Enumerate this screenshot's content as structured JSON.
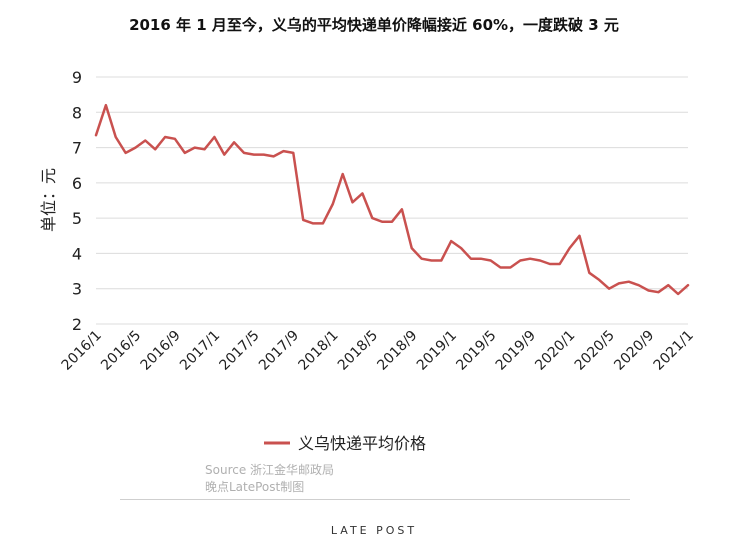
{
  "chart_data": {
    "type": "line",
    "title": "2016 年 1 月至今，义乌的平均快递单价降幅接近 60%，一度跌破 3 元",
    "ylabel": "单位：元",
    "xlabel": "",
    "ylim": [
      2,
      9
    ],
    "yticks": [
      "2",
      "3",
      "4",
      "5",
      "6",
      "7",
      "8",
      "9"
    ],
    "grid": true,
    "legend_position": "bottom",
    "x_tick_labels": [
      "2016/1",
      "2016/5",
      "2016/9",
      "2017/1",
      "2017/5",
      "2017/9",
      "2018/1",
      "2018/5",
      "2018/9",
      "2019/1",
      "2019/5",
      "2019/9",
      "2020/1",
      "2020/5",
      "2020/9",
      "2021/1"
    ],
    "x": [
      "2016/1",
      "2016/2",
      "2016/3",
      "2016/4",
      "2016/5",
      "2016/6",
      "2016/7",
      "2016/8",
      "2016/9",
      "2016/10",
      "2016/11",
      "2016/12",
      "2017/1",
      "2017/2",
      "2017/3",
      "2017/4",
      "2017/5",
      "2017/6",
      "2017/7",
      "2017/8",
      "2017/9",
      "2017/10",
      "2017/11",
      "2017/12",
      "2018/1",
      "2018/2",
      "2018/3",
      "2018/4",
      "2018/5",
      "2018/6",
      "2018/7",
      "2018/8",
      "2018/9",
      "2018/10",
      "2018/11",
      "2018/12",
      "2019/1",
      "2019/2",
      "2019/3",
      "2019/4",
      "2019/5",
      "2019/6",
      "2019/7",
      "2019/8",
      "2019/9",
      "2019/10",
      "2019/11",
      "2019/12",
      "2020/1",
      "2020/2",
      "2020/3",
      "2020/4",
      "2020/5",
      "2020/6",
      "2020/7",
      "2020/8",
      "2020/9",
      "2020/10",
      "2020/11",
      "2020/12",
      "2021/1"
    ],
    "series": [
      {
        "name": "义乌快递平均价格",
        "color": "#c9514f",
        "values": [
          7.35,
          8.2,
          7.3,
          6.85,
          7.0,
          7.2,
          6.95,
          7.3,
          7.25,
          6.85,
          7.0,
          6.95,
          7.3,
          6.8,
          7.15,
          6.85,
          6.8,
          6.8,
          6.75,
          6.9,
          6.85,
          4.95,
          4.85,
          4.85,
          5.4,
          6.25,
          5.45,
          5.7,
          5.0,
          4.9,
          4.9,
          5.25,
          4.15,
          3.85,
          3.8,
          3.8,
          4.35,
          4.15,
          3.85,
          3.85,
          3.8,
          3.6,
          3.6,
          3.8,
          3.85,
          3.8,
          3.7,
          3.7,
          4.15,
          4.5,
          3.45,
          3.25,
          3.0,
          3.15,
          3.2,
          3.1,
          2.95,
          2.9,
          3.1,
          2.85,
          3.1
        ]
      }
    ]
  },
  "source": {
    "line1": "Source   浙江金华邮政局",
    "line2": "晚点LatePost制图"
  },
  "brand": "LATE POST"
}
